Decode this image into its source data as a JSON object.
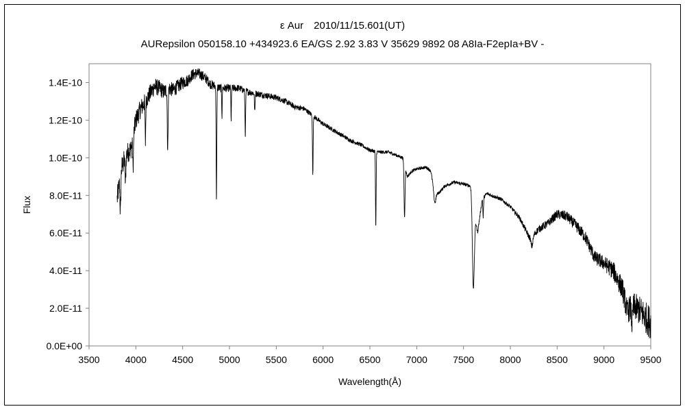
{
  "chart_data": {
    "type": "line",
    "title": "ε Aur　2010/11/15.601(UT)",
    "subtitle": "AURepsilon 050158.10 +434923.6 EA/GS 2.92 3.83 V 35629 9892 08 A8Ia-F2epIa+BV -",
    "xlabel": "Wavelength(Å)",
    "ylabel": "Flux",
    "xlim": [
      3500,
      9500
    ],
    "ylim": [
      0,
      1.5e-10
    ],
    "x_ticks": [
      "3500",
      "4000",
      "4500",
      "5000",
      "5500",
      "6000",
      "6500",
      "7000",
      "7500",
      "8000",
      "8500",
      "9000",
      "9500"
    ],
    "y_ticks": [
      "0.0E+00",
      "2.0E-11",
      "4.0E-11",
      "6.0E-11",
      "8.0E-11",
      "1.0E-10",
      "1.2E-10",
      "1.4E-10"
    ],
    "grid": false,
    "legend": "none",
    "line_color": "#000000",
    "series": [
      {
        "continuum": [
          [
            3800,
            7.8e-11
          ],
          [
            3850,
            9.5e-11
          ],
          [
            3900,
            1.02e-10
          ],
          [
            3950,
            1.05e-10
          ],
          [
            4000,
            1.2e-10
          ],
          [
            4050,
            1.26e-10
          ],
          [
            4100,
            1.3e-10
          ],
          [
            4150,
            1.34e-10
          ],
          [
            4200,
            1.38e-10
          ],
          [
            4250,
            1.37e-10
          ],
          [
            4300,
            1.35e-10
          ],
          [
            4350,
            1.37e-10
          ],
          [
            4400,
            1.36e-10
          ],
          [
            4450,
            1.38e-10
          ],
          [
            4500,
            1.4e-10
          ],
          [
            4550,
            1.41e-10
          ],
          [
            4600,
            1.44e-10
          ],
          [
            4650,
            1.45e-10
          ],
          [
            4700,
            1.44e-10
          ],
          [
            4750,
            1.42e-10
          ],
          [
            4800,
            1.39e-10
          ],
          [
            4900,
            1.37e-10
          ],
          [
            5000,
            1.37e-10
          ],
          [
            5100,
            1.37e-10
          ],
          [
            5200,
            1.35e-10
          ],
          [
            5300,
            1.34e-10
          ],
          [
            5400,
            1.33e-10
          ],
          [
            5500,
            1.32e-10
          ],
          [
            5600,
            1.3e-10
          ],
          [
            5700,
            1.27e-10
          ],
          [
            5800,
            1.26e-10
          ],
          [
            5900,
            1.22e-10
          ],
          [
            6000,
            1.18e-10
          ],
          [
            6100,
            1.15e-10
          ],
          [
            6200,
            1.12e-10
          ],
          [
            6300,
            1.09e-10
          ],
          [
            6400,
            1.07e-10
          ],
          [
            6500,
            1.04e-10
          ],
          [
            6600,
            1.03e-10
          ],
          [
            6700,
            1.03e-10
          ],
          [
            6800,
            1.01e-10
          ],
          [
            6850,
            1e-10
          ],
          [
            6900,
            9e-11
          ],
          [
            6950,
            9.3e-11
          ],
          [
            7000,
            9.4e-11
          ],
          [
            7100,
            9.5e-11
          ],
          [
            7150,
            9.3e-11
          ],
          [
            7200,
            8e-11
          ],
          [
            7250,
            8.2e-11
          ],
          [
            7300,
            8.5e-11
          ],
          [
            7400,
            8.7e-11
          ],
          [
            7500,
            8.6e-11
          ],
          [
            7580,
            8.5e-11
          ],
          [
            7650,
            6e-11
          ],
          [
            7700,
            7.8e-11
          ],
          [
            7750,
            8.1e-11
          ],
          [
            7800,
            8e-11
          ],
          [
            7900,
            7.8e-11
          ],
          [
            8000,
            7.4e-11
          ],
          [
            8100,
            6.8e-11
          ],
          [
            8200,
            5.8e-11
          ],
          [
            8250,
            5.9e-11
          ],
          [
            8300,
            6.2e-11
          ],
          [
            8400,
            6.5e-11
          ],
          [
            8500,
            7e-11
          ],
          [
            8600,
            6.9e-11
          ],
          [
            8700,
            6.4e-11
          ],
          [
            8800,
            5.8e-11
          ],
          [
            8900,
            4.7e-11
          ],
          [
            9000,
            4.4e-11
          ],
          [
            9100,
            4e-11
          ],
          [
            9200,
            3e-11
          ],
          [
            9250,
            1.8e-11
          ],
          [
            9300,
            2.2e-11
          ],
          [
            9350,
            2e-11
          ],
          [
            9400,
            1.8e-11
          ],
          [
            9450,
            1.5e-11
          ],
          [
            9500,
            1.2e-11
          ]
        ],
        "absorption_lines": [
          [
            3835,
            7e-11,
            12
          ],
          [
            3889,
            8.6e-11,
            12
          ],
          [
            3970,
            9.5e-11,
            12
          ],
          [
            4102,
            1.08e-10,
            10
          ],
          [
            4340,
            1.03e-10,
            12
          ],
          [
            4861,
            7.7e-11,
            10
          ],
          [
            4920,
            1.22e-10,
            8
          ],
          [
            5018,
            1.2e-10,
            8
          ],
          [
            5169,
            1.12e-10,
            10
          ],
          [
            5270,
            1.24e-10,
            10
          ],
          [
            5890,
            9e-11,
            10
          ],
          [
            6563,
            6.2e-11,
            10
          ],
          [
            6870,
            6.8e-11,
            14
          ],
          [
            7190,
            7.7e-11,
            30
          ],
          [
            7605,
            3.1e-11,
            30
          ],
          [
            7710,
            6.8e-11,
            10
          ],
          [
            8230,
            5.3e-11,
            30
          ],
          [
            9300,
            1.2e-11,
            20
          ]
        ],
        "noise_amplitude": [
          [
            3800,
            6e-12
          ],
          [
            4500,
            3.5e-12
          ],
          [
            5000,
            2e-12
          ],
          [
            6000,
            1.2e-12
          ],
          [
            7000,
            8e-13
          ],
          [
            8000,
            1e-12
          ],
          [
            8500,
            2.5e-12
          ],
          [
            9000,
            4e-12
          ],
          [
            9500,
            9e-12
          ]
        ]
      }
    ]
  }
}
